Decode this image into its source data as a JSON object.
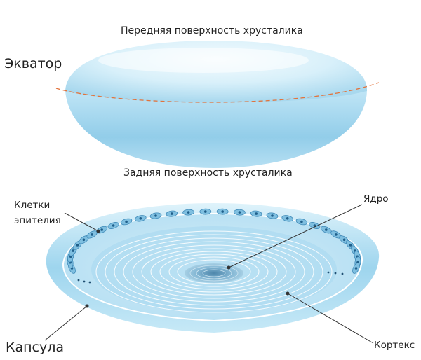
{
  "labels": {
    "front_surface": "Передняя поверхность хрусталика",
    "equator": "Экватор",
    "back_surface": "Задняя поверхность хрусталика",
    "epithelial_cells_line1": "Клетки",
    "epithelial_cells_line2": "эпителия",
    "nucleus": "Ядро",
    "capsule": "Капсула",
    "cortex": "Кортекс"
  },
  "colors": {
    "lens_light": "#eaf7fd",
    "lens_mid": "#bfe4f5",
    "lens_dark": "#8ccbe8",
    "equator_line": "#e2733c",
    "epithelial_cell": "#4e9fcc",
    "nucleus_core": "#5f96b8",
    "leader_line": "#333333"
  },
  "icons": [
    "lens-side-view",
    "lens-cross-section",
    "epithelial-cell"
  ]
}
